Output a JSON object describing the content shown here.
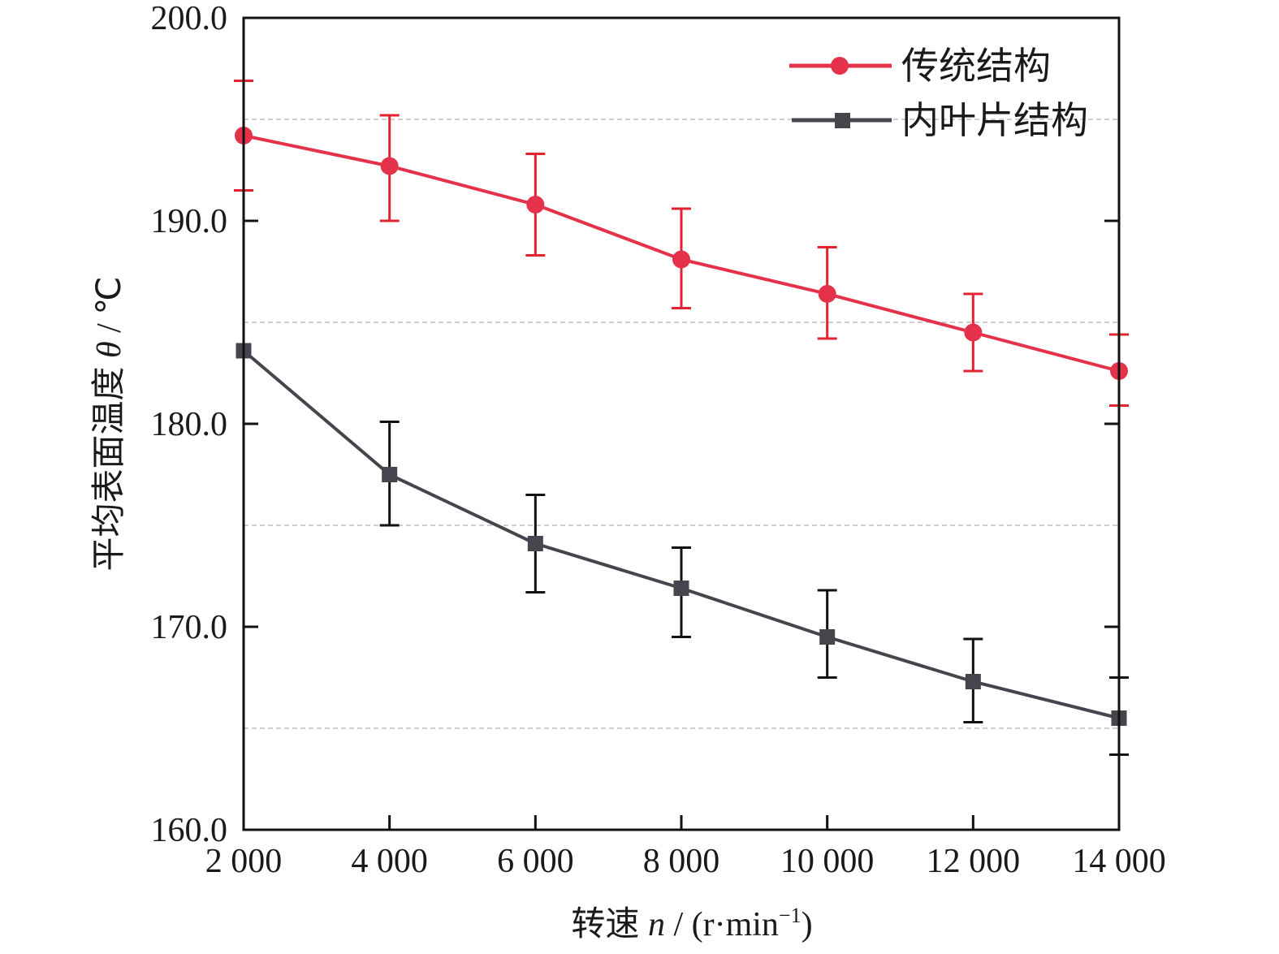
{
  "chart_data": {
    "type": "line",
    "title": "",
    "xlabel": "转速 n / (r·min⁻¹)",
    "xlabel_parts": {
      "prefix": "转速 ",
      "var": "n",
      "mid": " / (r·min",
      "sup": "−1",
      "suffix": ")"
    },
    "ylabel": "平均表面温度 θ̄ / ℃",
    "ylabel_parts": {
      "prefix": "平均表面温度 ",
      "var": "θ",
      "suffix": " / ℃"
    },
    "x": [
      2000,
      4000,
      6000,
      8000,
      10000,
      12000,
      14000
    ],
    "x_tick_labels": [
      "2 000",
      "4 000",
      "6 000",
      "8 000",
      "10 000",
      "12 000",
      "14 000"
    ],
    "xlim": [
      2000,
      14000
    ],
    "ylim": [
      160,
      200
    ],
    "y_ticks": [
      160,
      170,
      180,
      190,
      200
    ],
    "y_tick_labels": [
      "160.0",
      "170.0",
      "180.0",
      "190.0",
      "200.0"
    ],
    "y_minor_ticks": [
      165,
      175,
      185,
      195
    ],
    "grid": {
      "on": true,
      "style": "dashed",
      "levels": [
        165,
        175,
        185,
        195
      ]
    },
    "legend": {
      "position": "top-right"
    },
    "series": [
      {
        "name": "传统结构",
        "color": "#e3324a",
        "marker": "circle",
        "values": [
          194.2,
          192.7,
          190.8,
          188.1,
          186.4,
          184.5,
          182.6
        ],
        "err_upper": [
          196.9,
          195.2,
          193.3,
          190.6,
          188.7,
          186.4,
          184.4
        ],
        "err_lower": [
          191.5,
          190.0,
          188.3,
          185.7,
          184.2,
          182.6,
          180.9
        ]
      },
      {
        "name": "内叶片结构",
        "color": "#45464d",
        "marker": "square",
        "values": [
          183.6,
          177.5,
          174.1,
          171.9,
          169.5,
          167.3,
          165.5
        ],
        "err_upper": [
          null,
          180.1,
          176.5,
          173.9,
          171.8,
          169.4,
          167.5
        ],
        "err_lower": [
          null,
          175.0,
          171.7,
          169.5,
          167.5,
          165.3,
          163.7
        ]
      }
    ]
  }
}
